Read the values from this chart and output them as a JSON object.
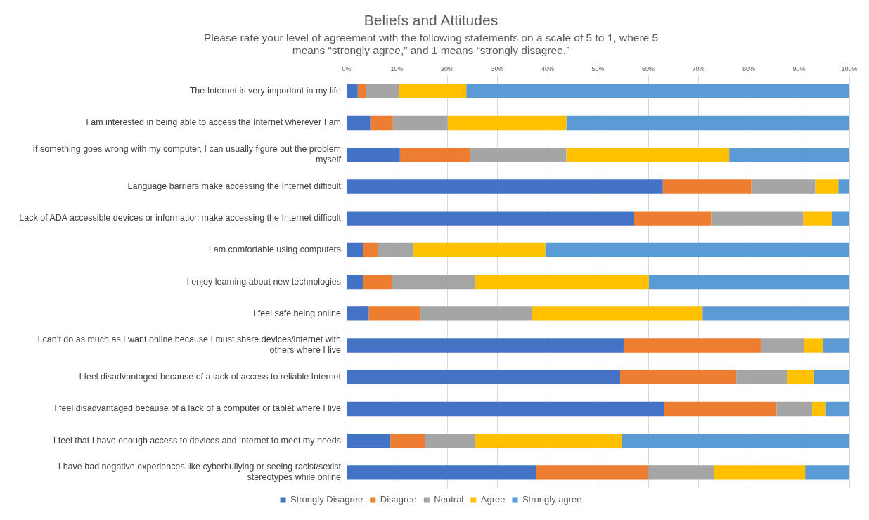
{
  "chart_data": {
    "type": "bar",
    "orientation": "horizontal",
    "stacked": true,
    "title": "Beliefs and Attitudes",
    "subtitle": "Please rate your level of agreement with the following statements on a scale of 5 to 1, where 5 means “strongly agree,” and 1 means “strongly disagree.”",
    "categories": [
      "The Internet is very important in my life",
      "I am interested in being able to access the Internet wherever I am",
      "If something goes wrong with my computer, I can usually figure out the problem myself",
      "Language barriers make accessing the Internet difficult",
      "Lack of ADA accessible devices or information make accessing the Internet difficult",
      "I am comfortable using computers",
      "I enjoy learning about new technologies",
      "I feel safe being online",
      "I can’t do as much as I want online because I must share devices/internet with others where I live",
      "I feel disadvantaged because of a lack of access to reliable Internet",
      "I feel disadvantaged because of a lack of a computer or tablet where I live",
      "I feel that I have enough access to devices and Internet to meet my needs",
      "I have had negative experiences like cyberbullying or seeing racist/sexist stereotypes while online"
    ],
    "series": [
      {
        "name": "Strongly Disagree",
        "color": "#4472c4",
        "values": [
          2.2,
          4.7,
          10.6,
          62.9,
          57.2,
          3.3,
          3.3,
          4.4,
          55.1,
          54.4,
          63.1,
          8.7,
          37.7
        ]
      },
      {
        "name": "Disagree",
        "color": "#ed7d31",
        "values": [
          1.7,
          4.5,
          13.9,
          17.6,
          15.3,
          2.9,
          5.7,
          10.3,
          27.4,
          23.1,
          22.4,
          6.9,
          22.3
        ]
      },
      {
        "name": "Neutral",
        "color": "#a5a5a5",
        "values": [
          6.5,
          10.9,
          19.2,
          12.7,
          18.3,
          7.1,
          16.6,
          22.2,
          8.5,
          10.2,
          7.1,
          10.0,
          13.1
        ]
      },
      {
        "name": "Agree",
        "color": "#ffc000",
        "values": [
          13.4,
          23.6,
          32.4,
          4.6,
          5.7,
          26.2,
          34.5,
          33.9,
          3.8,
          5.3,
          2.7,
          29.2,
          18.1
        ]
      },
      {
        "name": "Strongly agree",
        "color": "#5b9bd5",
        "values": [
          76.2,
          56.3,
          23.9,
          2.2,
          3.5,
          60.5,
          39.9,
          29.2,
          5.2,
          7.0,
          4.7,
          45.2,
          8.8
        ]
      }
    ],
    "xlim": [
      0,
      100
    ],
    "xticks": [
      {
        "value": 0,
        "label": "0%"
      },
      {
        "value": 10,
        "label": "10%"
      },
      {
        "value": 20,
        "label": "20%"
      },
      {
        "value": 30,
        "label": "30%"
      },
      {
        "value": 40,
        "label": "40%"
      },
      {
        "value": 50,
        "label": "50%"
      },
      {
        "value": 60,
        "label": "60%"
      },
      {
        "value": 70,
        "label": "70%"
      },
      {
        "value": 80,
        "label": "80%"
      },
      {
        "value": 90,
        "label": "90%"
      },
      {
        "value": 100,
        "label": "100%"
      }
    ],
    "grid": "x",
    "legend": "bottom"
  }
}
